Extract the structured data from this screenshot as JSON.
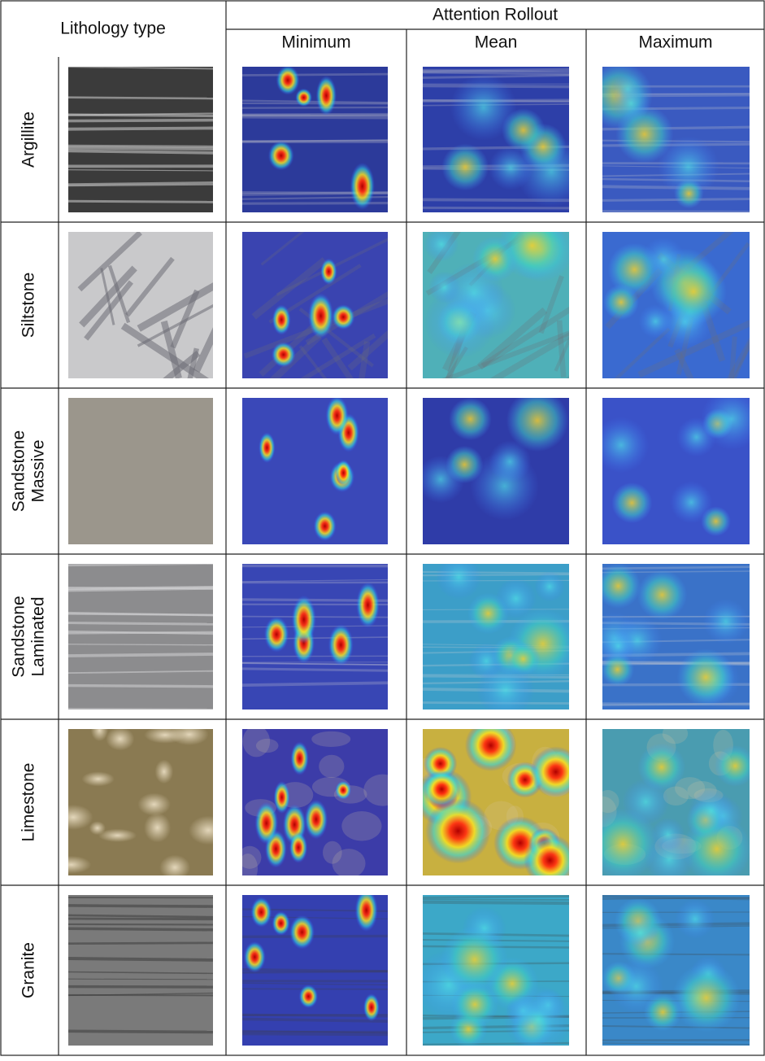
{
  "header": {
    "lithology_type": "Lithology type",
    "attention_rollout": "Attention Rollout",
    "columns": [
      "Minimum",
      "Mean",
      "Maximum"
    ]
  },
  "rows": [
    {
      "label_lines": [
        "Argillite"
      ]
    },
    {
      "label_lines": [
        "Siltstone"
      ]
    },
    {
      "label_lines": [
        "Sandstone",
        "Massive"
      ]
    },
    {
      "label_lines": [
        "Sandstone",
        "Laminated"
      ]
    },
    {
      "label_lines": [
        "Limestone"
      ]
    },
    {
      "label_lines": [
        "Granite"
      ]
    }
  ]
}
